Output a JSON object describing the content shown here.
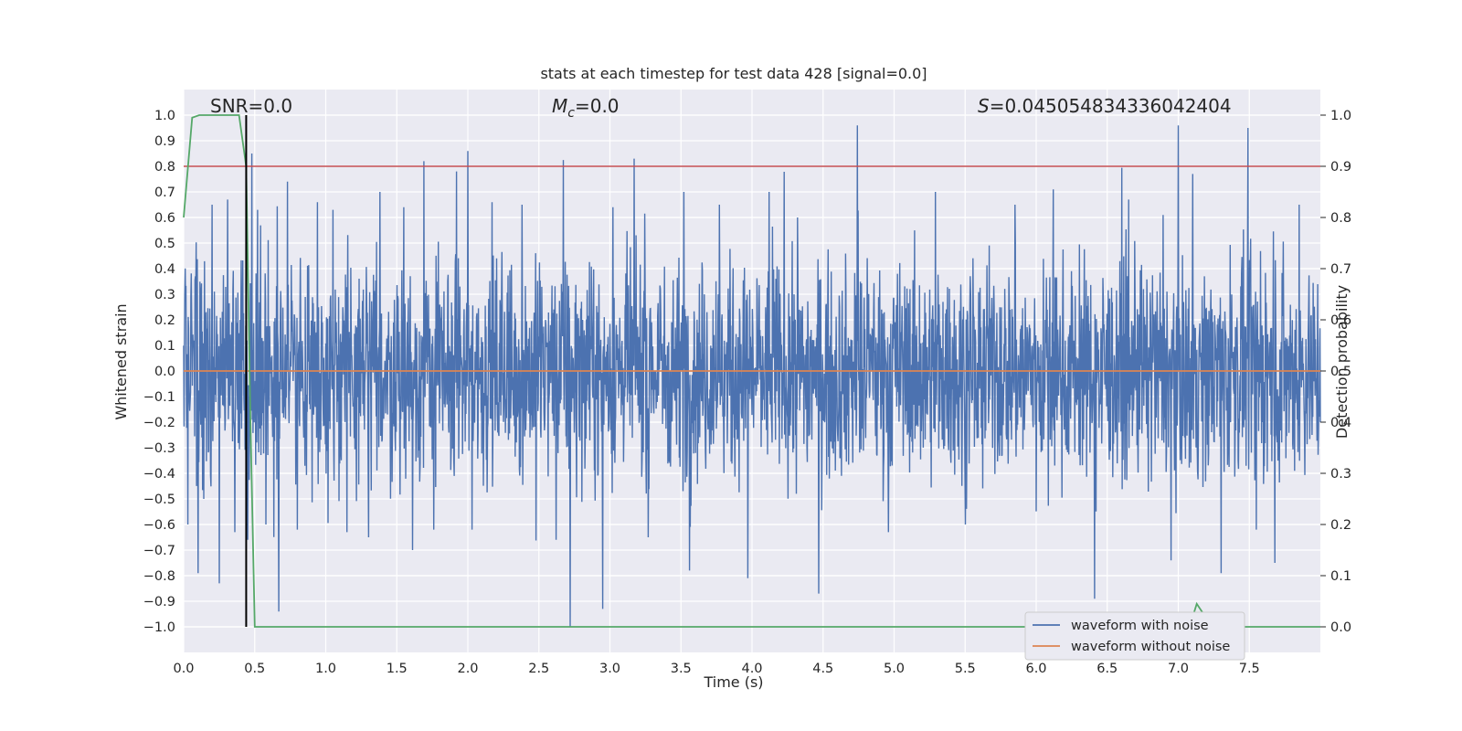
{
  "chart_data": {
    "type": "line",
    "title": "stats at each timestep for test data 428 [signal=0.0]",
    "xlabel": "Time (s)",
    "ylabel": "Whitened strain",
    "y2label": "Detection probability",
    "xlim": [
      0.0,
      8.0
    ],
    "ylim": [
      -1.1,
      1.1
    ],
    "y2lim": [
      -0.05,
      1.05
    ],
    "xticks": [
      "0.0",
      "0.5",
      "1.0",
      "1.5",
      "2.0",
      "2.5",
      "3.0",
      "3.5",
      "4.0",
      "4.5",
      "5.0",
      "5.5",
      "6.0",
      "6.5",
      "7.0",
      "7.5"
    ],
    "yticks": [
      "1.0",
      "0.9",
      "0.8",
      "0.7",
      "0.6",
      "0.5",
      "0.4",
      "0.3",
      "0.2",
      "0.1",
      "0.0",
      "−0.1",
      "−0.2",
      "−0.3",
      "−0.4",
      "−0.5",
      "−0.6",
      "−0.7",
      "−0.8",
      "−0.9",
      "−1.0"
    ],
    "y2ticks": [
      "1.0",
      "0.9",
      "0.8",
      "0.7",
      "0.6",
      "0.5",
      "0.4",
      "0.3",
      "0.2",
      "0.1",
      "0.0"
    ],
    "annotations": {
      "snr": "SNR=0.0",
      "mc_symbol": "M",
      "mc_sub": "c",
      "mc_value": "=0.0",
      "s_symbol": "S",
      "s_value": "=0.045054834336042404"
    },
    "threshold": 0.9,
    "detection_time": 0.44,
    "series": [
      {
        "name": "waveform with noise",
        "color": "#4c72b0",
        "description": "dense whitened noise, envelope roughly ±0.5 with spikes up to ~0.96 and down to ~−1.0",
        "spikes": [
          [
            0.03,
            -0.6
          ],
          [
            0.1,
            -0.79
          ],
          [
            0.2,
            0.65
          ],
          [
            0.25,
            -0.83
          ],
          [
            0.31,
            0.67
          ],
          [
            0.36,
            -0.63
          ],
          [
            0.45,
            -0.66
          ],
          [
            0.48,
            0.85
          ],
          [
            0.52,
            0.63
          ],
          [
            0.58,
            -0.6
          ],
          [
            0.67,
            -0.94
          ],
          [
            0.73,
            0.74
          ],
          [
            0.8,
            -0.62
          ],
          [
            0.94,
            0.66
          ],
          [
            1.05,
            0.63
          ],
          [
            1.15,
            -0.63
          ],
          [
            1.3,
            -0.65
          ],
          [
            1.38,
            0.7
          ],
          [
            1.55,
            0.64
          ],
          [
            1.61,
            -0.7
          ],
          [
            1.69,
            0.82
          ],
          [
            1.76,
            -0.62
          ],
          [
            1.92,
            0.78
          ],
          [
            2.0,
            0.86
          ],
          [
            2.03,
            -0.62
          ],
          [
            2.17,
            0.66
          ],
          [
            2.38,
            0.65
          ],
          [
            2.62,
            -0.66
          ],
          [
            2.72,
            -1.0
          ],
          [
            2.95,
            -0.93
          ],
          [
            3.02,
            0.64
          ],
          [
            3.17,
            0.83
          ],
          [
            3.27,
            -0.65
          ],
          [
            3.52,
            0.7
          ],
          [
            3.56,
            -0.78
          ],
          [
            3.77,
            0.65
          ],
          [
            3.97,
            -0.81
          ],
          [
            4.12,
            0.7
          ],
          [
            4.32,
            0.6
          ],
          [
            4.47,
            -0.87
          ],
          [
            4.74,
            0.96
          ],
          [
            4.96,
            -0.63
          ],
          [
            5.29,
            0.7
          ],
          [
            5.5,
            -0.6
          ],
          [
            5.85,
            0.65
          ],
          [
            6.12,
            0.71
          ],
          [
            6.41,
            -0.89
          ],
          [
            6.65,
            0.67
          ],
          [
            6.95,
            -0.74
          ],
          [
            7.1,
            0.77
          ],
          [
            7.3,
            -0.79
          ],
          [
            7.49,
            0.95
          ],
          [
            7.55,
            -0.62
          ],
          [
            7.68,
            -0.75
          ],
          [
            7.85,
            0.65
          ]
        ]
      },
      {
        "name": "waveform without noise",
        "color": "#dd8452",
        "x": [
          0.0,
          8.0
        ],
        "y": [
          0.0,
          0.0
        ]
      },
      {
        "name": "detection probability",
        "color": "#55a868",
        "axis": "right",
        "x": [
          0.0,
          0.06,
          0.11,
          0.17,
          0.22,
          0.28,
          0.33,
          0.37,
          0.39,
          0.44,
          0.47,
          0.5,
          7.08,
          7.13,
          7.19,
          7.25,
          7.3,
          7.4,
          7.5,
          7.7,
          8.0
        ],
        "y": [
          0.8,
          0.995,
          1.0,
          1.0,
          1.0,
          1.0,
          1.0,
          1.0,
          1.0,
          0.9,
          0.4,
          0.0,
          0.0,
          0.045,
          0.02,
          0.0,
          0.0,
          0.0,
          0.0,
          0.0,
          0.0
        ]
      },
      {
        "name": "threshold",
        "color": "#c44e52",
        "axis": "right",
        "x": [
          0.0,
          8.0
        ],
        "y": [
          0.9,
          0.9
        ]
      }
    ],
    "legend": {
      "location": "lower-right",
      "entries": [
        {
          "label": "waveform with noise",
          "color": "#4c72b0"
        },
        {
          "label": "waveform without noise",
          "color": "#dd8452"
        }
      ]
    },
    "grid": true
  }
}
